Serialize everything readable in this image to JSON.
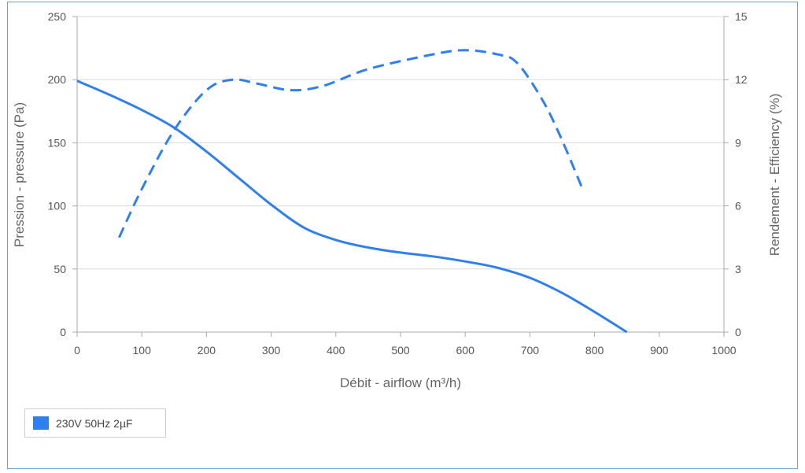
{
  "chart_data": {
    "type": "line",
    "xlabel": "Débit - airflow (m³/h)",
    "ylabel_left": "Pression - pressure (Pa)",
    "ylabel_right": "Rendement - Efficiency (%)",
    "xlim": [
      0,
      1000
    ],
    "ylim_left": [
      0,
      250
    ],
    "ylim_right": [
      0,
      15
    ],
    "x_ticks": [
      "0",
      "100",
      "200",
      "300",
      "400",
      "500",
      "600",
      "700",
      "800",
      "900",
      "1000"
    ],
    "y_left_ticks": [
      "0",
      "50",
      "100",
      "150",
      "200",
      "250"
    ],
    "y_right_ticks": [
      "0",
      "3",
      "6",
      "9",
      "12",
      "15"
    ],
    "grid": true,
    "legend_position": "bottom-left",
    "colors": {
      "series": "#2f80ed",
      "grid": "#d9d9d9",
      "axis": "#aaaaaa",
      "border": "#6aa3d8"
    },
    "series": [
      {
        "name": "230V 50Hz 2µF",
        "axis": "left",
        "style": "solid",
        "x": [
          0,
          50,
          100,
          150,
          200,
          250,
          300,
          350,
          400,
          450,
          500,
          550,
          600,
          650,
          700,
          750,
          800,
          850
        ],
        "y": [
          199,
          188,
          176,
          162,
          143,
          122,
          101,
          83,
          73,
          67,
          63,
          60,
          56,
          51,
          43,
          31,
          16,
          0
        ]
      },
      {
        "axis": "right",
        "style": "dashed",
        "x": [
          65,
          100,
          150,
          200,
          240,
          280,
          330,
          380,
          450,
          550,
          600,
          650,
          680,
          720,
          750,
          780
        ],
        "y": [
          4.5,
          6.8,
          9.6,
          11.5,
          12.0,
          11.8,
          11.5,
          11.7,
          12.5,
          13.2,
          13.4,
          13.2,
          12.8,
          11.0,
          9.1,
          6.9
        ]
      }
    ]
  },
  "legend": {
    "label": "230V 50Hz 2µF"
  }
}
